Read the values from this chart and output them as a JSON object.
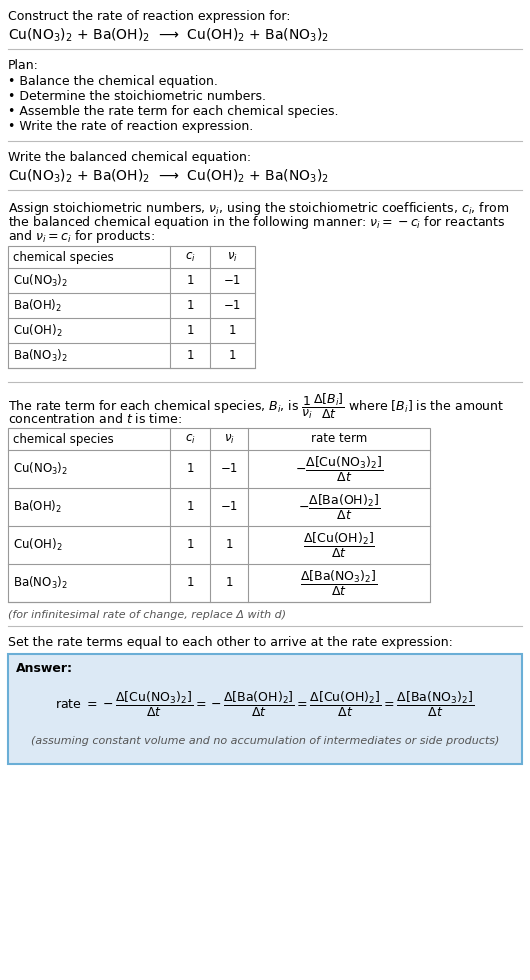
{
  "title_line1": "Construct the rate of reaction expression for:",
  "title_eq": "Cu(NO$_3$)$_2$ + Ba(OH)$_2$  ⟶  Cu(OH)$_2$ + Ba(NO$_3$)$_2$",
  "plan_header": "Plan:",
  "plan_items": [
    "• Balance the chemical equation.",
    "• Determine the stoichiometric numbers.",
    "• Assemble the rate term for each chemical species.",
    "• Write the rate of reaction expression."
  ],
  "balanced_header": "Write the balanced chemical equation:",
  "balanced_eq": "Cu(NO$_3$)$_2$ + Ba(OH)$_2$  ⟶  Cu(OH)$_2$ + Ba(NO$_3$)$_2$",
  "stoich_intro1": "Assign stoichiometric numbers, $\\nu_i$, using the stoichiometric coefficients, $c_i$, from",
  "stoich_intro2": "the balanced chemical equation in the following manner: $\\nu_i = -c_i$ for reactants",
  "stoich_intro3": "and $\\nu_i = c_i$ for products:",
  "table1_col0_header": "chemical species",
  "table1_col1_header": "$c_i$",
  "table1_col2_header": "$\\nu_i$",
  "table1_rows": [
    [
      "Cu(NO$_3$)$_2$",
      "1",
      "−1"
    ],
    [
      "Ba(OH)$_2$",
      "1",
      "−1"
    ],
    [
      "Cu(OH)$_2$",
      "1",
      "1"
    ],
    [
      "Ba(NO$_3$)$_2$",
      "1",
      "1"
    ]
  ],
  "rate_intro1": "The rate term for each chemical species, $B_i$, is $\\dfrac{1}{\\nu_i}\\dfrac{\\Delta[B_i]}{\\Delta t}$ where $[B_i]$ is the amount",
  "rate_intro2": "concentration and $t$ is time:",
  "table2_col0_header": "chemical species",
  "table2_col1_header": "$c_i$",
  "table2_col2_header": "$\\nu_i$",
  "table2_col3_header": "rate term",
  "table2_rows": [
    [
      "Cu(NO$_3$)$_2$",
      "1",
      "−1",
      "$-\\dfrac{\\Delta[\\mathrm{Cu(NO_3)_2}]}{\\Delta t}$"
    ],
    [
      "Ba(OH)$_2$",
      "1",
      "−1",
      "$-\\dfrac{\\Delta[\\mathrm{Ba(OH)_2}]}{\\Delta t}$"
    ],
    [
      "Cu(OH)$_2$",
      "1",
      "1",
      "$\\dfrac{\\Delta[\\mathrm{Cu(OH)_2}]}{\\Delta t}$"
    ],
    [
      "Ba(NO$_3$)$_2$",
      "1",
      "1",
      "$\\dfrac{\\Delta[\\mathrm{Ba(NO_3)_2}]}{\\Delta t}$"
    ]
  ],
  "infinitesimal_note": "(for infinitesimal rate of change, replace Δ with d)",
  "set_equal_header": "Set the rate terms equal to each other to arrive at the rate expression:",
  "answer_label": "Answer:",
  "answer_box_color": "#dce9f5",
  "answer_border_color": "#6aaed6",
  "rate_expression": "rate $= -\\dfrac{\\Delta[\\mathrm{Cu(NO_3)_2}]}{\\Delta t} = -\\dfrac{\\Delta[\\mathrm{Ba(OH)_2}]}{\\Delta t} = \\dfrac{\\Delta[\\mathrm{Cu(OH)_2}]}{\\Delta t} = \\dfrac{\\Delta[\\mathrm{Ba(NO_3)_2}]}{\\Delta t}$",
  "footnote": "(assuming constant volume and no accumulation of intermediates or side products)",
  "bg_color": "#ffffff",
  "text_color": "#000000",
  "line_color": "#bbbbbb",
  "table_line_color": "#999999"
}
